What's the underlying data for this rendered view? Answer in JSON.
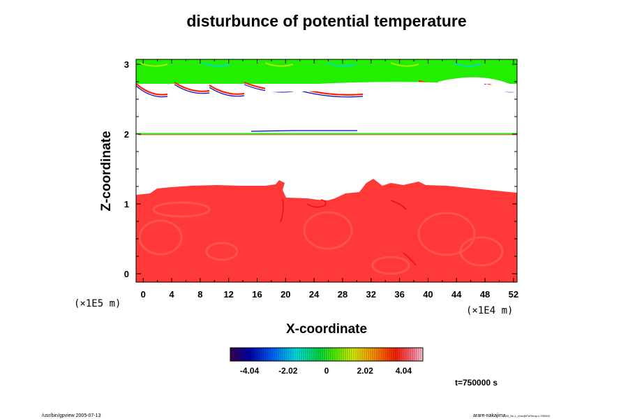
{
  "chart_data": {
    "type": "heatmap",
    "title": "disturbunce of potential temperature",
    "xlabel": "X-coordinate",
    "ylabel": "Z-coordinate",
    "x_scale_label": "(×1E4 m)",
    "y_scale_label": "(×1E5 m)",
    "x_ticks": [
      "0",
      "4",
      "8",
      "12",
      "16",
      "20",
      "24",
      "28",
      "32",
      "36",
      "40",
      "44",
      "48",
      "52"
    ],
    "y_ticks": [
      "0",
      "1",
      "2",
      "3"
    ],
    "xlim": [
      -1,
      52.5
    ],
    "ylim": [
      -0.12,
      3.07
    ],
    "colorbar": {
      "range": [
        -5.05,
        5.05
      ],
      "ticks": [
        "-4.04",
        "-2.02",
        "0",
        "2.02",
        "4.04"
      ],
      "tick_values": [
        -4.04,
        -2.02,
        0,
        2.02,
        4.04
      ]
    },
    "time_label": "t=750000 s",
    "regions": [
      {
        "name": "lower-warm-layer",
        "z_range": [
          -0.12,
          1.2
        ],
        "value": 4.3
      },
      {
        "name": "upper-layer",
        "z_range": [
          2.72,
          3.07
        ],
        "value": 0.3
      }
    ]
  },
  "footer": {
    "left": "/usr/bin/gpview 2005-07-13",
    "right_main": "arare-nakajima",
    "right_small": "03_5e-1_v2nc@PotTemp,t=750000"
  },
  "colors": {
    "warm": "#ff3838",
    "warm_light": "#ff5a5a",
    "warm_dark": "#ee1010",
    "neutral": "#22ee00",
    "cold": "#0000cc",
    "axis": "#000000"
  }
}
